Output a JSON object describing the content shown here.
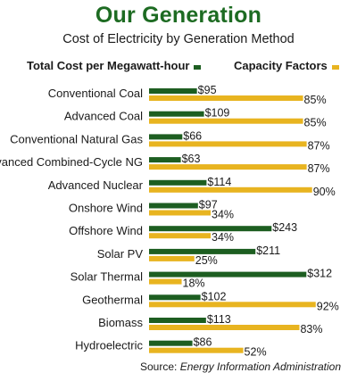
{
  "header": {
    "title": "Our Generation",
    "subtitle": "Cost of Electricity by Generation Method"
  },
  "legend": {
    "cost": "Total Cost per Megawatt-hour",
    "capacity": "Capacity Factors"
  },
  "source": {
    "label": "Source:",
    "name": "Energy Information Administration"
  },
  "colors": {
    "cost": "#1d5e21",
    "capacity": "#e8b420",
    "title": "#1d6b22"
  },
  "chart_data": {
    "type": "bar",
    "orientation": "horizontal",
    "title": "Our Generation",
    "subtitle": "Cost of Electricity by Generation Method",
    "categories": [
      "Conventional Coal",
      "Advanced Coal",
      "Conventional Natural Gas",
      "Advanced Combined-Cycle NG",
      "Advanced Nuclear",
      "Onshore Wind",
      "Offshore Wind",
      "Solar PV",
      "Solar Thermal",
      "Geothermal",
      "Biomass",
      "Hydroelectric"
    ],
    "series": [
      {
        "name": "Total Cost per Megawatt-hour",
        "values": [
          95,
          109,
          66,
          63,
          114,
          97,
          243,
          211,
          312,
          102,
          113,
          86
        ],
        "labels": [
          "$95",
          "$109",
          "$66",
          "$63",
          "$114",
          "$97",
          "$243",
          "$211",
          "$312",
          "$102",
          "$113",
          "$86"
        ]
      },
      {
        "name": "Capacity Factors",
        "values": [
          85,
          85,
          87,
          87,
          90,
          34,
          34,
          25,
          18,
          92,
          83,
          52
        ],
        "labels": [
          "85%",
          "85%",
          "87%",
          "87%",
          "90%",
          "34%",
          "34%",
          "25%",
          "18%",
          "92%",
          "83%",
          "52%"
        ]
      }
    ],
    "legend": "top",
    "grid": false
  }
}
